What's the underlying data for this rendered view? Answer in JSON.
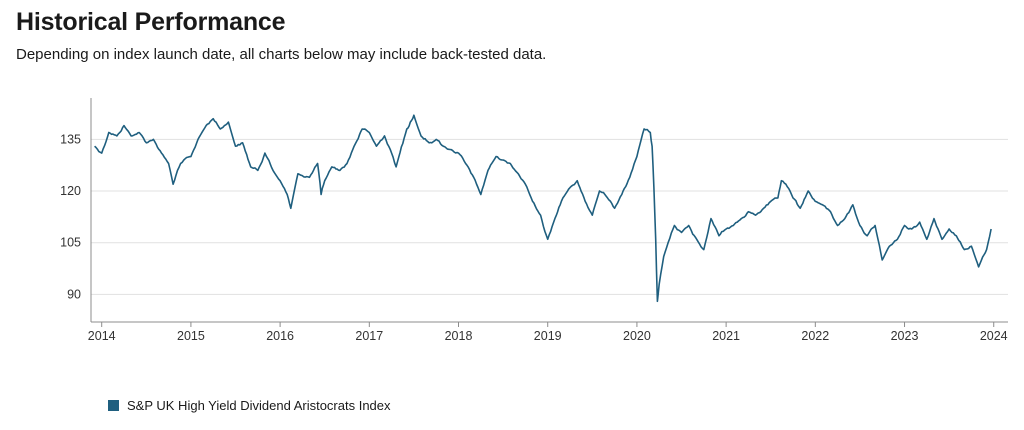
{
  "header": {
    "title": "Historical Performance",
    "subtitle": "Depending on index launch date, all charts below may include back-tested data."
  },
  "chart_data": {
    "type": "line",
    "title": "",
    "xlabel": "",
    "ylabel": "",
    "y_ticks": [
      "90",
      "105",
      "120",
      "135"
    ],
    "x_ticks": [
      "2014",
      "2015",
      "2016",
      "2017",
      "2018",
      "2019",
      "2020",
      "2021",
      "2022",
      "2023",
      "2024"
    ],
    "ylim": [
      82,
      147
    ],
    "xlim": [
      2013.88,
      2024.16
    ],
    "grid": "horizontal",
    "legend_position": "bottom-left",
    "series": [
      {
        "name": "S&P UK High Yield Dividend Aristocrats Index",
        "color": "#1f5f7f",
        "x": [
          2013.92,
          2014.0,
          2014.08,
          2014.17,
          2014.25,
          2014.33,
          2014.42,
          2014.5,
          2014.58,
          2014.67,
          2014.75,
          2014.8,
          2014.85,
          2014.92,
          2015.0,
          2015.08,
          2015.17,
          2015.25,
          2015.33,
          2015.42,
          2015.5,
          2015.58,
          2015.67,
          2015.75,
          2015.83,
          2015.92,
          2016.0,
          2016.08,
          2016.12,
          2016.2,
          2016.33,
          2016.42,
          2016.46,
          2016.5,
          2016.58,
          2016.67,
          2016.75,
          2016.83,
          2016.92,
          2017.0,
          2017.08,
          2017.17,
          2017.25,
          2017.3,
          2017.42,
          2017.46,
          2017.5,
          2017.58,
          2017.67,
          2017.75,
          2017.83,
          2017.92,
          2018.0,
          2018.08,
          2018.17,
          2018.25,
          2018.33,
          2018.42,
          2018.5,
          2018.58,
          2018.67,
          2018.75,
          2018.83,
          2018.92,
          2019.0,
          2019.08,
          2019.17,
          2019.25,
          2019.33,
          2019.42,
          2019.5,
          2019.58,
          2019.67,
          2019.75,
          2019.83,
          2019.92,
          2020.0,
          2020.08,
          2020.15,
          2020.17,
          2020.19,
          2020.21,
          2020.23,
          2020.25,
          2020.3,
          2020.35,
          2020.42,
          2020.5,
          2020.58,
          2020.67,
          2020.75,
          2020.83,
          2020.92,
          2021.0,
          2021.08,
          2021.17,
          2021.25,
          2021.33,
          2021.42,
          2021.5,
          2021.58,
          2021.62,
          2021.67,
          2021.75,
          2021.83,
          2021.92,
          2022.0,
          2022.08,
          2022.17,
          2022.25,
          2022.33,
          2022.42,
          2022.5,
          2022.58,
          2022.67,
          2022.75,
          2022.83,
          2022.92,
          2023.0,
          2023.08,
          2023.17,
          2023.25,
          2023.33,
          2023.42,
          2023.5,
          2023.58,
          2023.67,
          2023.75,
          2023.83,
          2023.92,
          2023.97
        ],
        "values": [
          133,
          131,
          137,
          136,
          139,
          136,
          137,
          134,
          135,
          131,
          128,
          122,
          126,
          129,
          130,
          135,
          139,
          141,
          138,
          140,
          133,
          134,
          127,
          126,
          131,
          126,
          123,
          119,
          115,
          125,
          124,
          128,
          119,
          123,
          127,
          126,
          128,
          133,
          138,
          137,
          133,
          136,
          131,
          127,
          138,
          140,
          142,
          136,
          134,
          135,
          133,
          132,
          131,
          128,
          124,
          119,
          126,
          130,
          129,
          128,
          125,
          122,
          117,
          113,
          106,
          112,
          118,
          121,
          123,
          117,
          113,
          120,
          118,
          115,
          119,
          124,
          130,
          138,
          137,
          133,
          121,
          106,
          88,
          93,
          101,
          105,
          110,
          108,
          110,
          106,
          103,
          112,
          107,
          109,
          110,
          112,
          114,
          113,
          115,
          117,
          118,
          123,
          122,
          118,
          115,
          120,
          117,
          116,
          114,
          110,
          112,
          116,
          110,
          107,
          110,
          100,
          104,
          106,
          110,
          109,
          111,
          106,
          112,
          106,
          109,
          107,
          103,
          104,
          98,
          103,
          109
        ]
      }
    ]
  }
}
